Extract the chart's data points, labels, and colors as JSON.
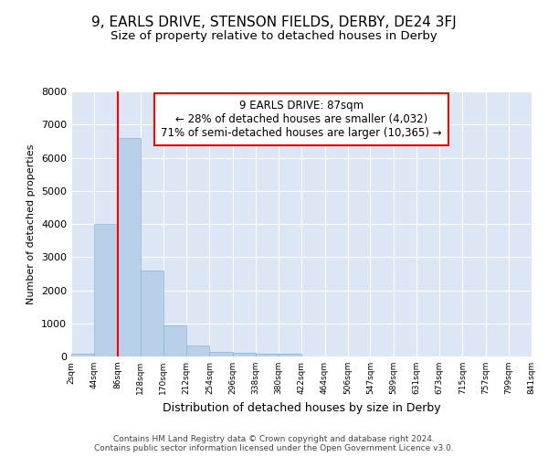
{
  "title": "9, EARLS DRIVE, STENSON FIELDS, DERBY, DE24 3FJ",
  "subtitle": "Size of property relative to detached houses in Derby",
  "xlabel": "Distribution of detached houses by size in Derby",
  "ylabel": "Number of detached properties",
  "bin_edges": [
    2,
    44,
    86,
    128,
    170,
    212,
    254,
    296,
    338,
    380,
    422,
    464,
    506,
    547,
    589,
    631,
    673,
    715,
    757,
    799,
    841
  ],
  "bar_heights": [
    70,
    4000,
    6600,
    2600,
    950,
    320,
    140,
    100,
    70,
    70,
    0,
    0,
    0,
    0,
    0,
    0,
    0,
    0,
    0,
    0
  ],
  "bar_color": "#b8d0e8",
  "bar_edge_color": "#8ab4d4",
  "red_line_x": 87,
  "annotation_line1": "9 EARLS DRIVE: 87sqm",
  "annotation_line2": "← 28% of detached houses are smaller (4,032)",
  "annotation_line3": "71% of semi-detached houses are larger (10,365) →",
  "annotation_box_color": "white",
  "annotation_box_edge_color": "red",
  "ylim": [
    0,
    8000
  ],
  "yticks": [
    0,
    1000,
    2000,
    3000,
    4000,
    5000,
    6000,
    7000,
    8000
  ],
  "bg_color": "#dce6f5",
  "grid_color": "#c8d8ec",
  "footer_text": "Contains HM Land Registry data © Crown copyright and database right 2024.\nContains public sector information licensed under the Open Government Licence v3.0.",
  "title_fontsize": 11,
  "subtitle_fontsize": 9.5,
  "annotation_fontsize": 8.5,
  "ylabel_fontsize": 8,
  "xlabel_fontsize": 9
}
